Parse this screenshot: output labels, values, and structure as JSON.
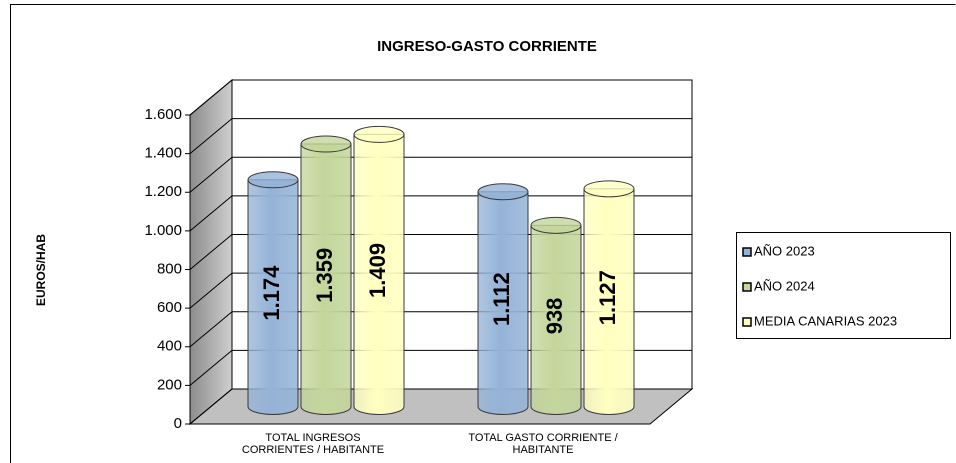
{
  "chart_data": {
    "type": "bar3d",
    "title": "INGRESO-GASTO CORRIENTE",
    "y_label": "EUROS/HAB",
    "categories": [
      "TOTAL INGRESOS CORRIENTES / HABITANTE",
      "TOTAL GASTO CORRIENTE / HABITANTE"
    ],
    "series": [
      {
        "name": "AÑO 2023",
        "color": "#95b3d7",
        "values": [
          1174,
          1112
        ],
        "value_labels": [
          "1.174",
          "1.112"
        ]
      },
      {
        "name": "AÑO 2024",
        "color": "#c3d69b",
        "values": [
          1359,
          938
        ],
        "value_labels": [
          "1.359",
          "938"
        ]
      },
      {
        "name": "MEDIA CANARIAS 2023",
        "color": "#ffffc0",
        "values": [
          1409,
          1127
        ],
        "value_labels": [
          "1.409",
          "1.127"
        ]
      }
    ],
    "ylim": [
      0,
      1600
    ],
    "yticks": [
      0,
      200,
      400,
      600,
      800,
      {
        "value": 1000,
        "label": "1.000"
      },
      {
        "value": 1200,
        "label": "1.200"
      },
      {
        "value": 1400,
        "label": "1.400"
      },
      {
        "value": 1600,
        "label": "1.600"
      }
    ],
    "grid": true,
    "legend": "right"
  }
}
